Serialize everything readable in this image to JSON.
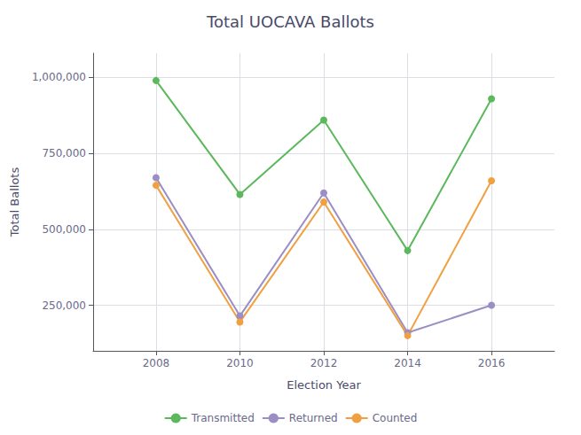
{
  "chart_data": {
    "type": "line",
    "title": "Total UOCAVA Ballots",
    "xlabel": "Election Year",
    "ylabel": "Total Ballots",
    "x": [
      2008,
      2010,
      2012,
      2014,
      2016
    ],
    "series": [
      {
        "name": "Transmitted",
        "color": "#5cb85c",
        "marker": "circle",
        "values": [
          990000,
          615000,
          860000,
          430000,
          930000
        ]
      },
      {
        "name": "Returned",
        "color": "#9b8ec4",
        "marker": "circle",
        "values": [
          670000,
          215000,
          620000,
          160000,
          250000
        ]
      },
      {
        "name": "Counted",
        "color": "#f0a040",
        "marker": "circle",
        "values": [
          645000,
          195000,
          590000,
          150000,
          660000
        ]
      }
    ],
    "xlim": [
      2006.5,
      2017.5
    ],
    "xticks": [
      2008,
      2010,
      2012,
      2014,
      2016
    ],
    "ylim": [
      100000,
      1080000
    ],
    "yticks": [
      {
        "value": 250000,
        "label": "250,000"
      },
      {
        "value": 500000,
        "label": "500,000"
      },
      {
        "value": 750000,
        "label": "750,000"
      },
      {
        "value": 1000000,
        "label": "1,000,000"
      }
    ],
    "grid": true,
    "legend": "bottom"
  }
}
